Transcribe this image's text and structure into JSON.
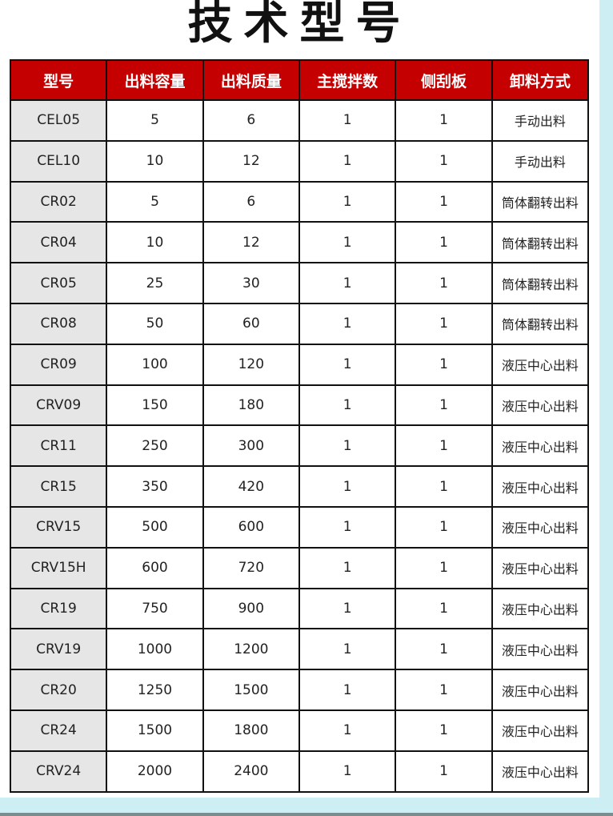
{
  "title": "技术型号",
  "headers": [
    "型号",
    "出料容量",
    "出料质量",
    "主搅拌数",
    "侧刮板",
    "卸料方式"
  ],
  "rows": [
    [
      "CEL05",
      "5",
      "6",
      "1",
      "1",
      "手动出料"
    ],
    [
      "CEL10",
      "10",
      "12",
      "1",
      "1",
      "手动出料"
    ],
    [
      "CR02",
      "5",
      "6",
      "1",
      "1",
      "筒体翻转出料"
    ],
    [
      "CR04",
      "10",
      "12",
      "1",
      "1",
      "筒体翻转出料"
    ],
    [
      "CR05",
      "25",
      "30",
      "1",
      "1",
      "筒体翻转出料"
    ],
    [
      "CR08",
      "50",
      "60",
      "1",
      "1",
      "筒体翻转出料"
    ],
    [
      "CR09",
      "100",
      "120",
      "1",
      "1",
      "液压中心出料"
    ],
    [
      "CRV09",
      "150",
      "180",
      "1",
      "1",
      "液压中心出料"
    ],
    [
      "CR11",
      "250",
      "300",
      "1",
      "1",
      "液压中心出料"
    ],
    [
      "CR15",
      "350",
      "420",
      "1",
      "1",
      "液压中心出料"
    ],
    [
      "CRV15",
      "500",
      "600",
      "1",
      "1",
      "液压中心出料"
    ],
    [
      "CRV15H",
      "600",
      "720",
      "1",
      "1",
      "液压中心出料"
    ],
    [
      "CR19",
      "750",
      "900",
      "1",
      "1",
      "液压中心出料"
    ],
    [
      "CRV19",
      "1000",
      "1200",
      "1",
      "1",
      "液压中心出料"
    ],
    [
      "CR20",
      "1250",
      "1500",
      "1",
      "1",
      "液压中心出料"
    ],
    [
      "CR24",
      "1500",
      "1800",
      "1",
      "1",
      "液压中心出料"
    ],
    [
      "CRV24",
      "2000",
      "2400",
      "1",
      "1",
      "液压中心出料"
    ]
  ],
  "colors": {
    "header_bg": "#c50000",
    "model_bg": "#e6e6e6",
    "page_bg": "#cdeef3"
  }
}
